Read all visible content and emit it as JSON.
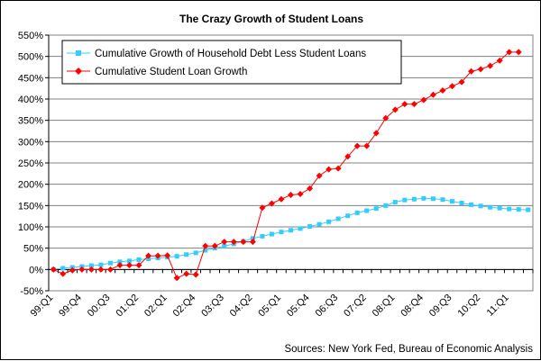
{
  "chart_data": {
    "type": "line",
    "title": "The Crazy Growth of Student Loans",
    "source": "Sources: New York Fed, Bureau of Economic Analysis",
    "x": [
      "99:Q1",
      "99:Q2",
      "99:Q3",
      "99:Q4",
      "00:Q1",
      "00:Q2",
      "00:Q3",
      "00:Q4",
      "01:Q1",
      "01:Q2",
      "01:Q3",
      "01:Q4",
      "02:Q1",
      "02:Q2",
      "02:Q3",
      "02:Q4",
      "03:Q1",
      "03:Q2",
      "03:Q3",
      "03:Q4",
      "04:Q1",
      "04:Q2",
      "04:Q3",
      "04:Q4",
      "05:Q1",
      "05:Q2",
      "05:Q3",
      "05:Q4",
      "06:Q1",
      "06:Q2",
      "06:Q3",
      "06:Q4",
      "07:Q1",
      "07:Q2",
      "07:Q3",
      "07:Q4",
      "08:Q1",
      "08:Q2",
      "08:Q3",
      "08:Q4",
      "09:Q1",
      "09:Q2",
      "09:Q3",
      "09:Q4",
      "10:Q1",
      "10:Q2",
      "10:Q3",
      "10:Q4",
      "11:Q1",
      "11:Q2",
      "11:Q3"
    ],
    "x_tick_labels": [
      "99:Q1",
      "99:Q4",
      "00:Q3",
      "01:Q2",
      "02:Q1",
      "02:Q4",
      "03:Q3",
      "04:Q2",
      "05:Q1",
      "05:Q4",
      "06:Q3",
      "07:Q2",
      "08:Q1",
      "08:Q4",
      "09:Q3",
      "10:Q2",
      "11:Q1"
    ],
    "ylim": [
      -50,
      550
    ],
    "y_ticks": [
      "-50%",
      "0%",
      "50%",
      "100%",
      "150%",
      "200%",
      "250%",
      "300%",
      "350%",
      "400%",
      "450%",
      "500%",
      "550%"
    ],
    "y_tick_values": [
      -50,
      0,
      50,
      100,
      150,
      200,
      250,
      300,
      350,
      400,
      450,
      500,
      550
    ],
    "grid": "horizontal",
    "legend_position": "top-left",
    "series": [
      {
        "name": "Cumulative Growth of Household Debt Less Student Loans",
        "color": "#33ccff",
        "marker": "square",
        "values": [
          0,
          3,
          5,
          7,
          9,
          11,
          15,
          18,
          20,
          23,
          25,
          27,
          29,
          31,
          35,
          39,
          45,
          50,
          55,
          60,
          66,
          73,
          78,
          83,
          88,
          92,
          96,
          101,
          106,
          112,
          119,
          126,
          133,
          138,
          143,
          150,
          158,
          163,
          165,
          167,
          166,
          164,
          160,
          156,
          152,
          149,
          146,
          144,
          142,
          141,
          140
        ]
      },
      {
        "name": "Cumulative Student Loan Growth",
        "color": "#ff0000",
        "marker": "diamond",
        "values": [
          0,
          -10,
          -2,
          0,
          0,
          0,
          0,
          10,
          10,
          10,
          32,
          32,
          33,
          -20,
          -10,
          -12,
          55,
          55,
          65,
          65,
          65,
          65,
          145,
          155,
          165,
          175,
          177,
          190,
          220,
          235,
          237,
          265,
          290,
          290,
          320,
          355,
          375,
          388,
          388,
          398,
          410,
          420,
          430,
          440,
          465,
          470,
          478,
          490,
          510,
          510,
          null
        ]
      }
    ]
  }
}
